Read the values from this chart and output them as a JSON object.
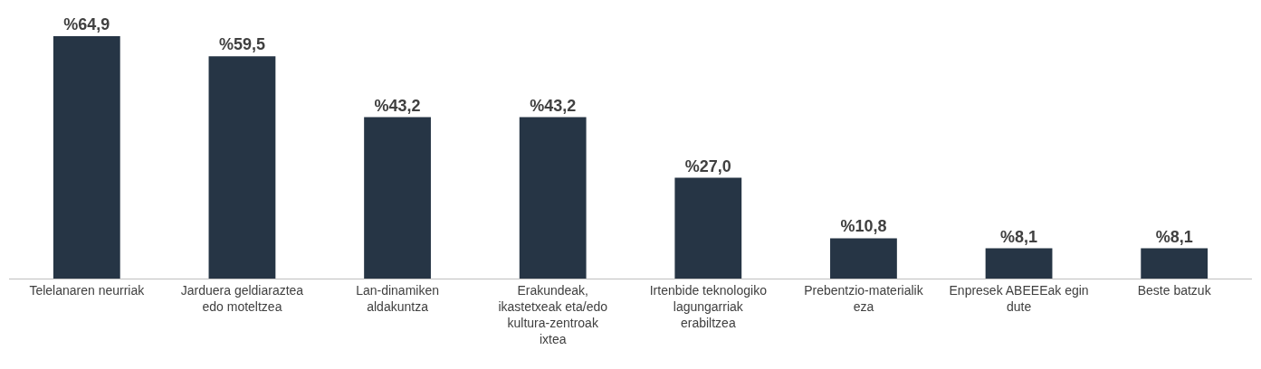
{
  "chart_data": {
    "type": "bar",
    "categories": [
      "Telelanaren neurriak",
      "Jarduera geldiaraztea edo moteltzea",
      "Lan-dinamiken aldakuntza",
      "Erakundeak, ikastetxeak eta/edo kultura-zentroak ixtea",
      "Irtenbide teknologiko lagungarriak erabiltzea",
      "Prebentzio-materialik eza",
      "Enpresek ABEEEak egin dute",
      "Beste batzuk"
    ],
    "values": [
      64.9,
      59.5,
      43.2,
      43.2,
      27.0,
      10.8,
      8.1,
      8.1
    ],
    "value_labels": [
      "%64,9",
      "%59,5",
      "%43,2",
      "%43,2",
      "%27,0",
      "%10,8",
      "%8,1",
      "%8,1"
    ],
    "color": "#263545"
  }
}
